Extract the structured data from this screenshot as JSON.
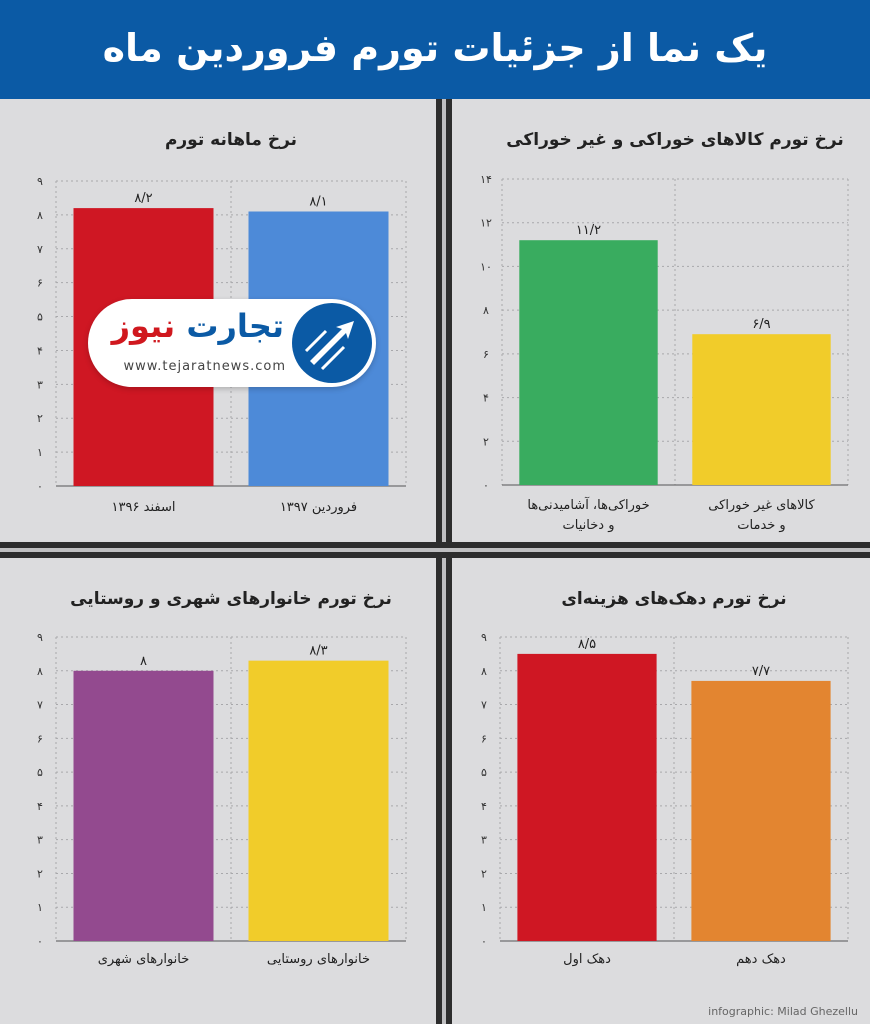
{
  "title": "یک نما از جزئیات تورم فروردین ماه",
  "logo": {
    "name_part1": "تجارت",
    "name_part2": "نیوز",
    "url": "www.tejaratnews.com"
  },
  "credit": "infographic: Milad Ghezellu",
  "chart_data": [
    {
      "type": "bar",
      "title": "نرخ ماهانه تورم",
      "categories": [
        "اسفند ۱۳۹۶",
        "فروردین ۱۳۹۷"
      ],
      "values": [
        8.2,
        8.1
      ],
      "value_labels": [
        "۸/۲",
        "۸/۱"
      ],
      "colors": [
        "#cf1723",
        "#4d8ad8"
      ],
      "ylim": [
        0,
        9
      ],
      "yticks": [
        "۰",
        "۱",
        "۲",
        "۳",
        "۴",
        "۵",
        "۶",
        "۷",
        "۸",
        "۹"
      ],
      "grid": true
    },
    {
      "type": "bar",
      "title": "نرخ تورم کالاهای خوراکی و غیر خوراکی",
      "categories": [
        [
          "خوراکی‌ها، آشامیدنی‌ها",
          "و دخانیات"
        ],
        [
          "کالاهای غیر خوراکی",
          "و خدمات"
        ]
      ],
      "values": [
        11.2,
        6.9
      ],
      "value_labels": [
        "۱۱/۲",
        "۶/۹"
      ],
      "colors": [
        "#39ac5f",
        "#f1cc2a"
      ],
      "ylim": [
        0,
        14
      ],
      "yticks": [
        "۰",
        "۲",
        "۴",
        "۶",
        "۸",
        "۱۰",
        "۱۲",
        "۱۴"
      ],
      "grid": true
    },
    {
      "type": "bar",
      "title": "نرخ تورم خانوارهای شهری و روستایی",
      "categories": [
        "خانوارهای شهری",
        "خانوارهای روستایی"
      ],
      "values": [
        8,
        8.3
      ],
      "value_labels": [
        "۸",
        "۸/۳"
      ],
      "colors": [
        "#934a8f",
        "#f1cc2a"
      ],
      "ylim": [
        0,
        9
      ],
      "yticks": [
        "۰",
        "۱",
        "۲",
        "۳",
        "۴",
        "۵",
        "۶",
        "۷",
        "۸",
        "۹"
      ],
      "grid": true
    },
    {
      "type": "bar",
      "title": "نرخ تورم دهک‌های هزینه‌ای",
      "categories": [
        "دهک اول",
        "دهک دهم"
      ],
      "values": [
        8.5,
        7.7
      ],
      "value_labels": [
        "۸/۵",
        "۷/۷"
      ],
      "colors": [
        "#cf1723",
        "#e38530"
      ],
      "ylim": [
        0,
        9
      ],
      "yticks": [
        "۰",
        "۱",
        "۲",
        "۳",
        "۴",
        "۵",
        "۶",
        "۷",
        "۸",
        "۹"
      ],
      "grid": true
    }
  ]
}
